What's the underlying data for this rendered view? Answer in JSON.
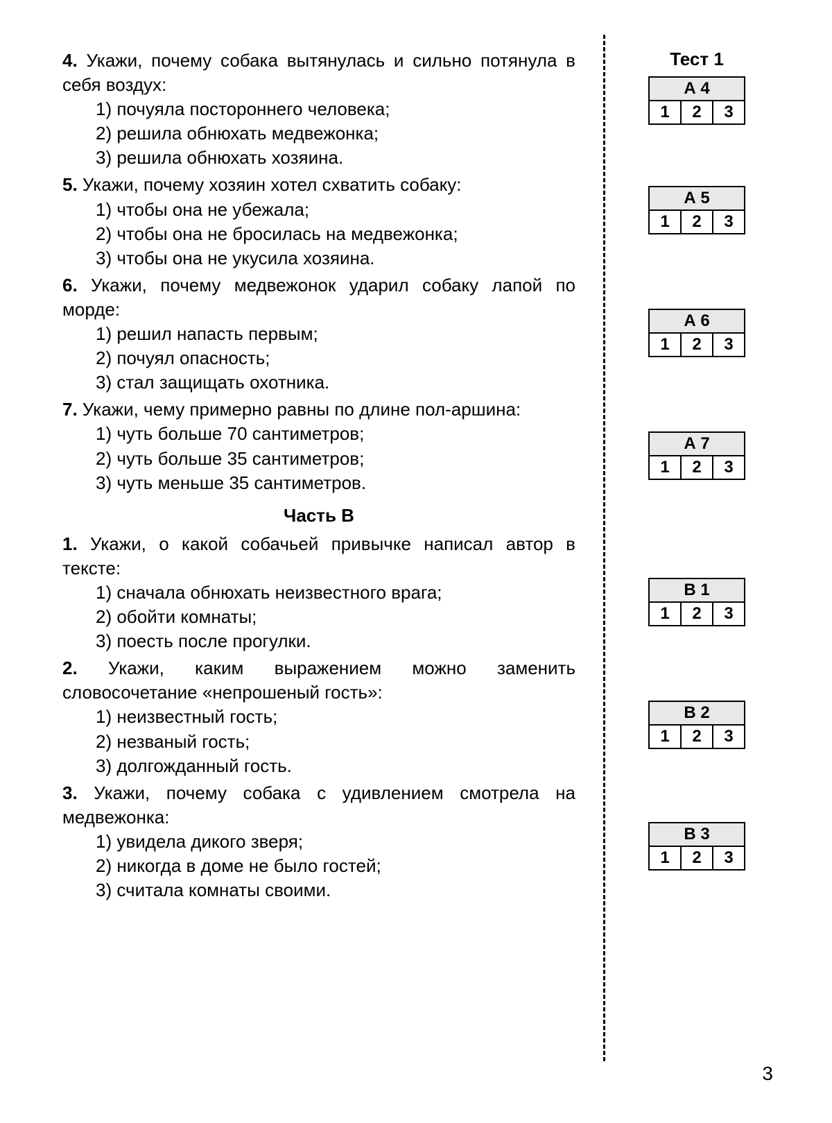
{
  "test_title": "Тест 1",
  "page_number": "3",
  "section_b_heading": "Часть B",
  "answer_options": [
    "1",
    "2",
    "3"
  ],
  "questions_a": [
    {
      "num": "4.",
      "prompt": "Укажи, почему собака вытянулась и сильно потянула в себя воздух:",
      "options": [
        "1) почуяла постороннего человека;",
        "2) решила обнюхать медвежонка;",
        "3) решила обнюхать хозяина."
      ],
      "box_label": "А 4"
    },
    {
      "num": "5.",
      "prompt": "Укажи, почему хозяин хотел схватить собаку:",
      "options": [
        "1) чтобы она не убежала;",
        "2) чтобы она не бросилась на медвежонка;",
        "3) чтобы она не укусила хозяина."
      ],
      "box_label": "А 5"
    },
    {
      "num": "6.",
      "prompt": "Укажи, почему медвежонок ударил собаку лапой по морде:",
      "options": [
        "1) решил напасть первым;",
        "2) почуял опасность;",
        "3) стал защищать охотника."
      ],
      "box_label": "А 6"
    },
    {
      "num": "7.",
      "prompt": "Укажи, чему примерно равны по длине пол-аршина:",
      "options": [
        "1) чуть больше 70 сантиметров;",
        "2) чуть больше 35 сантиметров;",
        "3) чуть меньше 35 сантиметров."
      ],
      "box_label": "А 7"
    }
  ],
  "questions_b": [
    {
      "num": "1.",
      "prompt": "Укажи, о какой собачьей привычке написал автор в тексте:",
      "options": [
        "1) сначала обнюхать неизвестного врага;",
        "2) обойти комнаты;",
        "3) поесть после прогулки."
      ],
      "box_label": "В 1"
    },
    {
      "num": "2.",
      "prompt": "Укажи, каким выражением можно заменить словосочетание «непрошеный гость»:",
      "options": [
        "1) неизвестный гость;",
        "2) незваный гость;",
        "3) долгожданный гость."
      ],
      "box_label": "В 2"
    },
    {
      "num": "3.",
      "prompt": "Укажи, почему собака с удивлением смотрела на медвежонка:",
      "options": [
        "1) увидела дикого зверя;",
        "2) никогда в доме не было гостей;",
        "3) считала комнаты своими."
      ],
      "box_label": "В 3"
    }
  ],
  "box_positions_a": [
    40,
    198,
    375,
    552
  ],
  "box_positions_b": [
    763,
    940,
    1115
  ]
}
